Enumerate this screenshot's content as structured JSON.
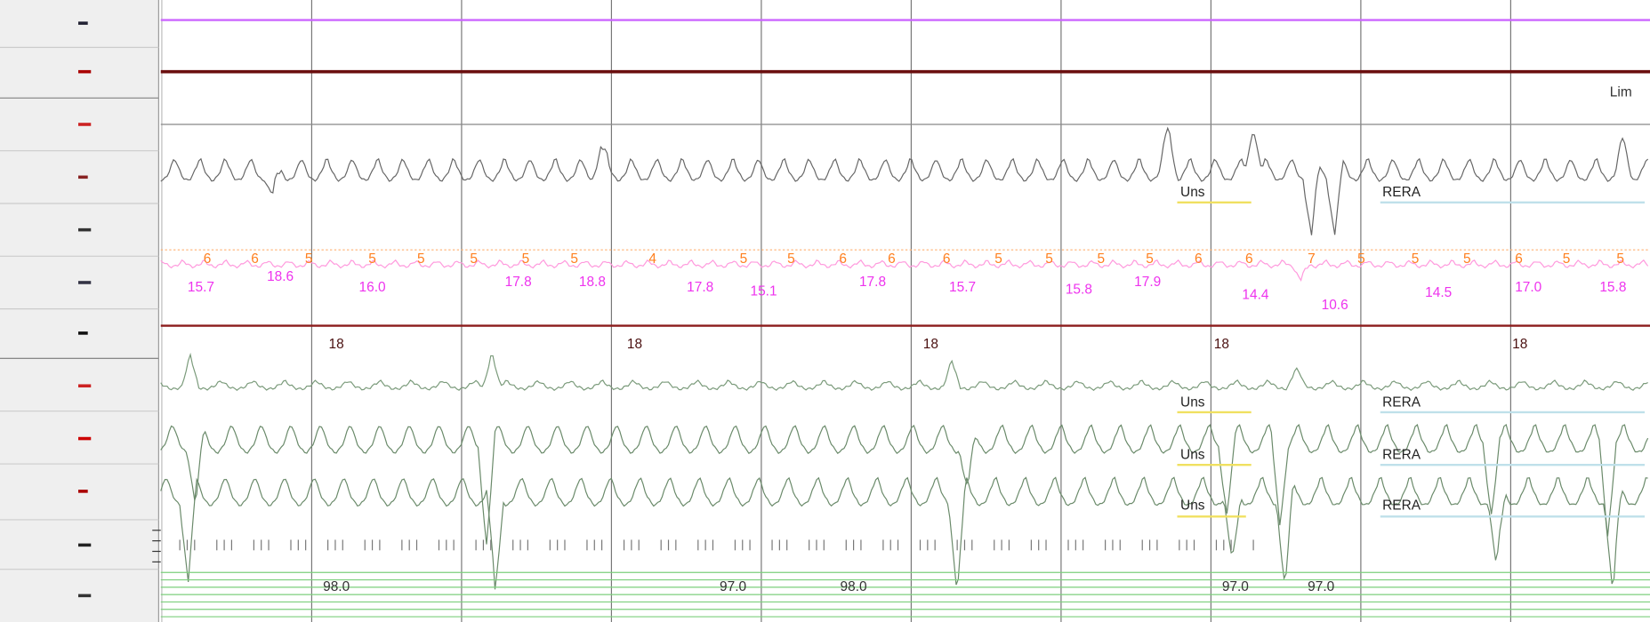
{
  "limit_label": "Lim",
  "event_labels": [
    "Uns",
    "RERA",
    "Uns",
    "RERA",
    "Uns",
    "RERA",
    "Uns",
    "RERA"
  ],
  "breath_counts": [
    "6",
    "6",
    "5",
    "5",
    "5",
    "5",
    "5",
    "5",
    "4",
    "5",
    "5",
    "6",
    "6",
    "6",
    "5",
    "5",
    "5",
    "5",
    "6",
    "6",
    "7",
    "5",
    "5",
    "5",
    "6",
    "5",
    "5"
  ],
  "rate_values": [
    "15.7",
    "18.6",
    "16.0",
    "17.8",
    "18.8",
    "17.8",
    "15.1",
    "17.8",
    "15.7",
    "15.8",
    "17.9",
    "14.4",
    "10.6",
    "14.5",
    "17.0",
    "15.8"
  ],
  "heart_rate_labels": [
    "18",
    "18",
    "18",
    "18",
    "18"
  ],
  "spo2_labels": [
    "98.0",
    "97.0",
    "98.0",
    "97.0",
    "97.0"
  ]
}
